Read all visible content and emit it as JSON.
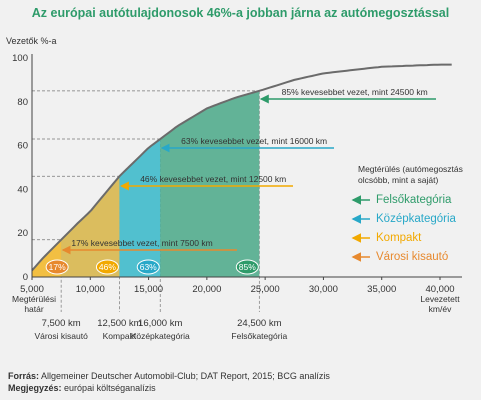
{
  "chart_data": {
    "type": "area",
    "title": "Az európai autótulajdonosok 46%-a jobban járna az autómegosztással",
    "ylabel": "Vezetők %-a",
    "xlabel": "Levezetett km/év",
    "xlim": [
      5000,
      40000
    ],
    "ylim": [
      0,
      100
    ],
    "x_ticks": [
      5000,
      10000,
      15000,
      20000,
      25000,
      30000,
      35000,
      40000
    ],
    "x_tick_labels": [
      "5,000",
      "10,000",
      "15,000",
      "20,000",
      "25,000",
      "30,000",
      "35,000",
      "40,000"
    ],
    "x_tick_sublabels": [
      "Megtérülési határ",
      "",
      "",
      "",
      "",
      "",
      "",
      "Levezetett km/év"
    ],
    "y_ticks": [
      0,
      20,
      40,
      60,
      80,
      100
    ],
    "curve": {
      "x": [
        5000,
        6000,
        7500,
        9000,
        10000,
        12500,
        15000,
        16000,
        17500,
        20000,
        22500,
        24500,
        27500,
        30000,
        35000,
        40000,
        41000
      ],
      "y": [
        3,
        9,
        17,
        25,
        30,
        46,
        59,
        63,
        69,
        77,
        82,
        85,
        90,
        93,
        96,
        97,
        97
      ]
    },
    "thresholds": [
      {
        "x": 7500,
        "value_label": "7,500 km",
        "category": "Városi kisautó",
        "percent": "17%",
        "y": 17,
        "annotation": "17% kevesebbet vezet, mint 7500 km",
        "color": "#f6bf3d"
      },
      {
        "x": 12500,
        "value_label": "12,500 km",
        "category": "Kompakt",
        "percent": "46%",
        "y": 46,
        "annotation": "46% kevesebbet vezet, mint 12500 km",
        "color": "#f3bc4a"
      },
      {
        "x": 16000,
        "value_label": "16,000 km",
        "category": "Középkategória",
        "percent": "63%",
        "y": 63,
        "annotation": "63% kevesebbet vezet, mint 16000 km",
        "color": "#4fc2d8"
      },
      {
        "x": 24500,
        "value_label": "24,500 km",
        "category": "Felsőkategória",
        "percent": "85%",
        "y": 85,
        "annotation": "85% kevesebbet vezet, mint 24500 km",
        "color": "#49a887"
      }
    ],
    "legend": {
      "title": "Megtérülés (autómegosztás olcsóbb, mint a saját)",
      "placement": "right",
      "items": [
        {
          "label": "Felsőkategória",
          "color": "#2e9b6a"
        },
        {
          "label": "Középkategória",
          "color": "#28a8c8"
        },
        {
          "label": "Kompakt",
          "color": "#f2a900"
        },
        {
          "label": "Városi kisautó",
          "color": "#e7892e"
        }
      ]
    }
  },
  "footer": {
    "source_label": "Forrás:",
    "source_text": "Allgemeiner Deutscher Automobil-Club; DAT Report, 2015; BCG analízis",
    "note_label": "Megjegyzés:",
    "note_text": "európai költséganalízis"
  }
}
